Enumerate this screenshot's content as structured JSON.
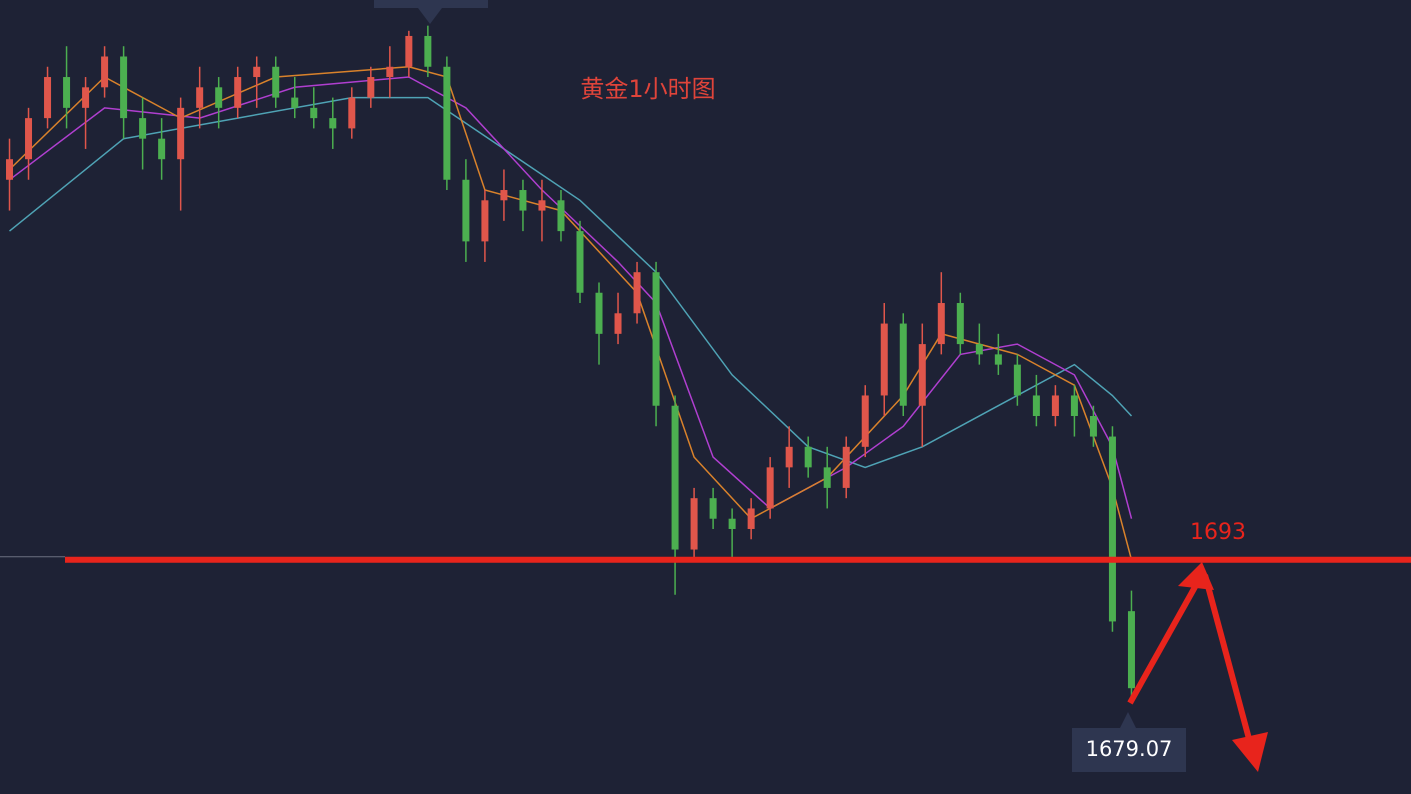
{
  "chart_data": {
    "type": "candlestick",
    "title": "黄金1小时图",
    "xlim": [
      -0.5,
      73.7
    ],
    "ylim": [
      1670.2,
      1747.5
    ],
    "up_color": "#e0564b",
    "down_color": "#4caf50",
    "open": [
      1730,
      1732,
      1736,
      1740,
      1737,
      1739,
      1742,
      1736,
      1734,
      1732,
      1737,
      1739,
      1737,
      1740,
      1741,
      1738,
      1737,
      1736,
      1735,
      1738,
      1740,
      1741,
      1744,
      1741,
      1730,
      1724,
      1728,
      1729,
      1727,
      1728,
      1725,
      1719,
      1715,
      1717,
      1721,
      1708,
      1694,
      1699,
      1697,
      1696,
      1698,
      1702,
      1704,
      1702,
      1700,
      1704,
      1709,
      1716,
      1708,
      1714,
      1718,
      1714,
      1713,
      1712,
      1709,
      1707,
      1709,
      1707,
      1705,
      1688
    ],
    "high": [
      1734,
      1737,
      1741,
      1743,
      1740,
      1743,
      1743,
      1738,
      1736,
      1738,
      1741,
      1740,
      1741,
      1742,
      1742,
      1740,
      1739,
      1738,
      1739,
      1741,
      1743,
      1744.5,
      1745,
      1742,
      1732,
      1729,
      1731,
      1730,
      1730,
      1729,
      1726,
      1720,
      1719,
      1722,
      1722,
      1709,
      1700,
      1700,
      1698,
      1699,
      1703,
      1706,
      1705,
      1704,
      1705,
      1710,
      1718,
      1717,
      1716,
      1721,
      1719,
      1716,
      1715,
      1713,
      1711,
      1710,
      1710,
      1708,
      1706,
      1690
    ],
    "low": [
      1727,
      1730,
      1735,
      1735,
      1733,
      1738,
      1734,
      1731,
      1730,
      1727,
      1735,
      1735,
      1736,
      1737,
      1737,
      1736,
      1735,
      1733,
      1734,
      1737,
      1738,
      1740,
      1740,
      1729,
      1722,
      1722,
      1726,
      1725,
      1724,
      1724,
      1718,
      1712,
      1714,
      1716,
      1706,
      1689.6,
      1693,
      1696,
      1693,
      1695,
      1697,
      1700,
      1701,
      1698,
      1699,
      1703,
      1707,
      1707,
      1704,
      1713,
      1713,
      1712,
      1711,
      1708,
      1706,
      1706,
      1705,
      1704,
      1686,
      1679.07
    ],
    "close": [
      1732,
      1736,
      1740,
      1737,
      1739,
      1742,
      1736,
      1734,
      1732,
      1737,
      1739,
      1737,
      1740,
      1741,
      1738,
      1737,
      1736,
      1735,
      1738,
      1740,
      1741,
      1744,
      1741,
      1730,
      1724,
      1728,
      1729,
      1727,
      1728,
      1725,
      1719,
      1715,
      1717,
      1721,
      1708,
      1694,
      1699,
      1697,
      1696,
      1698,
      1702,
      1704,
      1702,
      1700,
      1704,
      1709,
      1716,
      1708,
      1714,
      1718,
      1714,
      1713,
      1712,
      1709,
      1707,
      1709,
      1707,
      1705,
      1687,
      1680.5
    ],
    "lines": [
      {
        "color": "#4fa3b5",
        "x": [
          0,
          6,
          12,
          18,
          22,
          26,
          30,
          34,
          38,
          42,
          45,
          48,
          52,
          56,
          58,
          59
        ],
        "values": [
          1725,
          1734,
          1736,
          1738,
          1738,
          1733,
          1728,
          1721,
          1711,
          1704,
          1702,
          1704,
          1708,
          1712,
          1709,
          1707
        ]
      },
      {
        "color": "#b03fd0",
        "x": [
          0,
          5,
          10,
          15,
          21,
          24,
          28,
          32,
          34,
          37,
          40,
          44,
          47,
          50,
          53,
          56,
          58,
          59
        ],
        "values": [
          1730,
          1737,
          1736,
          1739,
          1740,
          1737,
          1729,
          1722,
          1718,
          1703,
          1698,
          1702,
          1706,
          1713,
          1714,
          1711,
          1704,
          1697
        ]
      },
      {
        "color": "#d9822b",
        "x": [
          0,
          5,
          9,
          14,
          21,
          23,
          25,
          29,
          33,
          36,
          39,
          43,
          47,
          49,
          53,
          56,
          58,
          59
        ],
        "values": [
          1731,
          1740,
          1736,
          1740,
          1741,
          1740,
          1729,
          1727,
          1719,
          1703,
          1697,
          1701,
          1709,
          1715,
          1713,
          1710,
          1700,
          1693
        ]
      }
    ],
    "level": {
      "value": 1693,
      "color": "#e8241c"
    }
  }
}
